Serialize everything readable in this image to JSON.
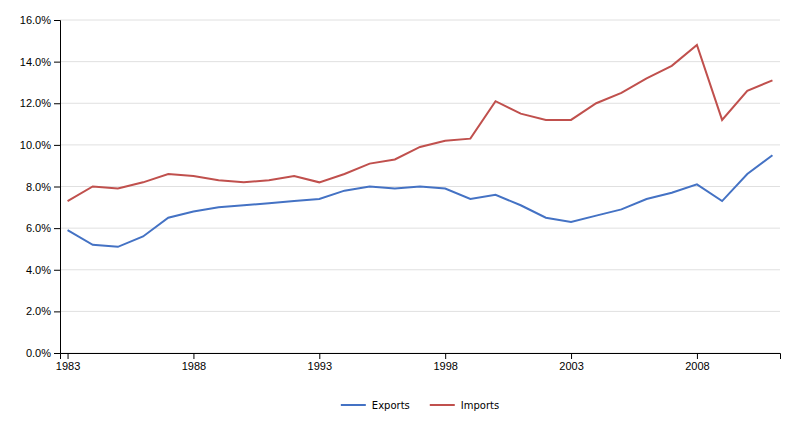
{
  "chart_data": {
    "type": "line",
    "x": [
      1983,
      1984,
      1985,
      1986,
      1987,
      1988,
      1989,
      1990,
      1991,
      1992,
      1993,
      1994,
      1995,
      1996,
      1997,
      1998,
      1999,
      2000,
      2001,
      2002,
      2003,
      2004,
      2005,
      2006,
      2007,
      2008,
      2009,
      2010,
      2011
    ],
    "series": [
      {
        "name": "Exports",
        "color": "#4472C4",
        "values": [
          0.059,
          0.052,
          0.051,
          0.056,
          0.065,
          0.068,
          0.07,
          0.071,
          0.072,
          0.073,
          0.074,
          0.078,
          0.08,
          0.079,
          0.08,
          0.079,
          0.074,
          0.076,
          0.071,
          0.065,
          0.063,
          0.066,
          0.069,
          0.074,
          0.077,
          0.081,
          0.073,
          0.086,
          0.095
        ]
      },
      {
        "name": "Imports",
        "color": "#C0504D",
        "values": [
          0.073,
          0.08,
          0.079,
          0.082,
          0.086,
          0.085,
          0.083,
          0.082,
          0.083,
          0.085,
          0.082,
          0.086,
          0.091,
          0.093,
          0.099,
          0.102,
          0.103,
          0.121,
          0.115,
          0.112,
          0.112,
          0.12,
          0.125,
          0.132,
          0.138,
          0.148,
          0.112,
          0.126,
          0.131
        ]
      }
    ],
    "xlim": [
      1982.7,
      2011.3
    ],
    "xticks": [
      1983,
      1988,
      1993,
      1998,
      2003,
      2008
    ],
    "ylim": [
      0.0,
      0.16
    ],
    "yticks": [
      {
        "value": 0.0,
        "label": "0.0%"
      },
      {
        "value": 0.02,
        "label": "2.0%"
      },
      {
        "value": 0.04,
        "label": "4.0%"
      },
      {
        "value": 0.06,
        "label": "6.0%"
      },
      {
        "value": 0.08,
        "label": "8.0%"
      },
      {
        "value": 0.1,
        "label": "10.0%"
      },
      {
        "value": 0.12,
        "label": "12.0%"
      },
      {
        "value": 0.14,
        "label": "14.0%"
      },
      {
        "value": 0.16,
        "label": "16.0%"
      }
    ],
    "grid": true,
    "legend": "bottom"
  }
}
